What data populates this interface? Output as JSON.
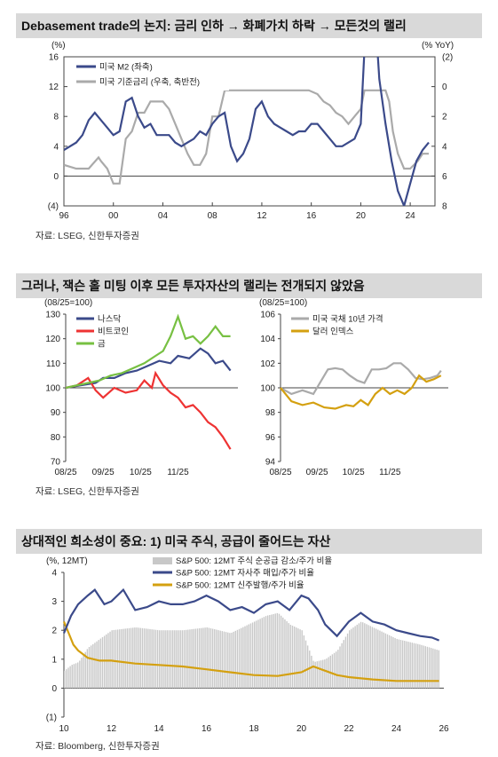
{
  "titles": {
    "c1": "Debasement trade의 논지: 금리 인하 → 화폐가치 하락 → 모든것의 랠리",
    "c2": "그러나, 잭슨 홀 미팅 이후 모든 투자자산의 랠리는 전개되지 않았음",
    "c3": "상대적인 희소성이 중요: 1) 미국 주식, 공급이 줄어드는 자산"
  },
  "sources": {
    "c1": "자료: LSEG, 신한투자증권",
    "c2": "자료: LSEG, 신한투자증권",
    "c3": "자료: Bloomberg, 신한투자증권"
  },
  "chart_data": [
    {
      "type": "line",
      "id": "m2-vs-rate",
      "left_unit": "(%)",
      "right_unit": "(% YoY)",
      "left_ylim": [
        -4,
        16
      ],
      "left_ticks": [
        16,
        12,
        8,
        4,
        0,
        -4
      ],
      "left_tick_labels": [
        "16",
        "12",
        "8",
        "4",
        "0",
        "(4)"
      ],
      "right_ylim": [
        -2,
        8
      ],
      "right_inverted": true,
      "right_ticks": [
        -2,
        0,
        2,
        4,
        6,
        8
      ],
      "right_tick_labels": [
        "(2)",
        "0",
        "2",
        "4",
        "6",
        "8"
      ],
      "xlim": [
        1996,
        2026
      ],
      "x_ticks": [
        1996,
        2000,
        2004,
        2008,
        2012,
        2016,
        2020,
        2024
      ],
      "x_tick_labels": [
        "96",
        "00",
        "04",
        "08",
        "12",
        "16",
        "20",
        "24"
      ],
      "series": [
        {
          "name": "미국 M2 (좌축)",
          "color": "#3b4a8a",
          "axis": "left",
          "x": [
            1996,
            1997,
            1997.5,
            1998,
            1998.5,
            1999,
            1999.5,
            2000,
            2000.5,
            2001,
            2001.5,
            2002,
            2002.5,
            2003,
            2003.5,
            2004,
            2004.5,
            2005,
            2005.5,
            2006,
            2006.5,
            2007,
            2007.5,
            2008,
            2008.5,
            2009,
            2009.5,
            2010,
            2010.5,
            2011,
            2011.5,
            2012,
            2012.5,
            2013,
            2013.5,
            2014,
            2014.5,
            2015,
            2015.5,
            2016,
            2016.5,
            2017,
            2017.5,
            2018,
            2018.5,
            2019,
            2019.5,
            2020,
            2020.3,
            2020.6,
            2021,
            2021.5,
            2022,
            2022.5,
            2023,
            2023.5,
            2024,
            2024.5,
            2025,
            2025.5
          ],
          "y": [
            3.5,
            4.5,
            5.5,
            7.5,
            8.5,
            7.5,
            6.5,
            5.5,
            6,
            10,
            10.5,
            8,
            6.5,
            7,
            5.5,
            5.5,
            5.5,
            4.5,
            4,
            4.5,
            5,
            6,
            5.5,
            7,
            8,
            8.5,
            4,
            2,
            3,
            5,
            9,
            10,
            8,
            7,
            6.5,
            6,
            5.5,
            6,
            6,
            7,
            7,
            6,
            5,
            4,
            4,
            4.5,
            5,
            7,
            17,
            24,
            26,
            13,
            7,
            2,
            -2,
            -4,
            -1,
            2,
            3.5,
            4.5
          ]
        },
        {
          "name": "미국 기준금리 (우축, 축반전)",
          "color": "#aaaaaa",
          "axis": "right",
          "x": [
            1996,
            1997,
            1998,
            1998.8,
            1999,
            1999.5,
            2000,
            2000.5,
            2001,
            2001.5,
            2002,
            2002.5,
            2003,
            2004,
            2004.5,
            2005,
            2005.5,
            2006,
            2006.5,
            2007,
            2007.5,
            2008,
            2008.5,
            2009,
            2010,
            2012,
            2014,
            2015.8,
            2016.5,
            2017,
            2017.5,
            2018,
            2018.5,
            2019,
            2019.5,
            2020,
            2020.3,
            2021,
            2022,
            2022.3,
            2022.6,
            2023,
            2023.5,
            2024,
            2024.6,
            2025,
            2025.5
          ],
          "y": [
            5.25,
            5.5,
            5.5,
            4.75,
            5,
            5.5,
            6.5,
            6.5,
            3.5,
            3,
            1.75,
            1.75,
            1,
            1,
            1.5,
            2.5,
            3.5,
            4.5,
            5.25,
            5.25,
            4.5,
            2,
            2,
            0.25,
            0.25,
            0.25,
            0.25,
            0.25,
            0.5,
            1,
            1.25,
            1.75,
            2,
            2.5,
            2,
            1.5,
            0.25,
            0.25,
            0.25,
            1,
            3,
            4.5,
            5.5,
            5.5,
            5,
            4.5,
            4.5
          ]
        }
      ]
    },
    {
      "type": "line",
      "id": "risk-assets",
      "unit": "(08/25=100)",
      "ylim": [
        70,
        130
      ],
      "y_ticks": [
        70,
        80,
        90,
        100,
        110,
        120,
        130
      ],
      "xlim": [
        0,
        4.6
      ],
      "x_ticks": [
        0,
        1,
        2,
        3
      ],
      "x_tick_labels": [
        "08/25",
        "09/25",
        "10/25",
        "11/25"
      ],
      "series": [
        {
          "name": "나스닥",
          "color": "#3b4a8a",
          "x": [
            0,
            0.4,
            0.8,
            1.0,
            1.3,
            1.6,
            1.9,
            2.2,
            2.5,
            2.8,
            3.0,
            3.3,
            3.6,
            3.8,
            4.0,
            4.2,
            4.4
          ],
          "y": [
            100,
            101,
            102,
            104,
            104,
            106,
            107,
            109,
            111,
            110,
            113,
            112,
            116,
            114,
            110,
            111,
            107
          ]
        },
        {
          "name": "비트코인",
          "color": "#ee3333",
          "x": [
            0,
            0.3,
            0.6,
            0.8,
            1.0,
            1.3,
            1.6,
            1.9,
            2.1,
            2.3,
            2.4,
            2.6,
            2.8,
            3.0,
            3.2,
            3.4,
            3.6,
            3.8,
            4.0,
            4.2,
            4.4
          ],
          "y": [
            100,
            101,
            104,
            99,
            96,
            100,
            98,
            99,
            103,
            100,
            106,
            101,
            98,
            96,
            92,
            93,
            90,
            86,
            84,
            80,
            75
          ]
        },
        {
          "name": "금",
          "color": "#77c042",
          "x": [
            0,
            0.3,
            0.6,
            0.9,
            1.2,
            1.5,
            1.8,
            2.1,
            2.4,
            2.6,
            2.8,
            3.0,
            3.2,
            3.4,
            3.6,
            3.8,
            4.0,
            4.2,
            4.4
          ],
          "y": [
            100,
            101,
            102,
            103,
            105,
            106,
            108,
            110,
            113,
            115,
            121,
            129,
            120,
            121,
            118,
            121,
            125,
            121,
            121
          ]
        }
      ]
    },
    {
      "type": "line",
      "id": "treasury-dollar",
      "unit": "(08/25=100)",
      "ylim": [
        94,
        106
      ],
      "y_ticks": [
        94,
        96,
        98,
        100,
        102,
        104,
        106
      ],
      "xlim": [
        0,
        4.6
      ],
      "x_ticks": [
        0,
        1,
        2,
        3
      ],
      "x_tick_labels": [
        "08/25",
        "09/25",
        "10/25",
        "11/25"
      ],
      "series": [
        {
          "name": "미국 국채 10년 가격",
          "color": "#aaaaaa",
          "x": [
            0,
            0.3,
            0.6,
            0.9,
            1.1,
            1.3,
            1.5,
            1.7,
            1.9,
            2.1,
            2.3,
            2.5,
            2.7,
            2.9,
            3.1,
            3.3,
            3.5,
            3.7,
            3.9,
            4.1,
            4.3,
            4.4
          ],
          "y": [
            100,
            99.5,
            99.8,
            99.5,
            100.5,
            101.5,
            101.6,
            101.5,
            101.0,
            100.6,
            100.4,
            101.5,
            101.5,
            101.6,
            102.0,
            102.0,
            101.5,
            100.8,
            100.7,
            100.8,
            101.0,
            101.4
          ]
        },
        {
          "name": "달러 인덱스",
          "color": "#d4a010",
          "x": [
            0,
            0.3,
            0.6,
            0.9,
            1.2,
            1.5,
            1.8,
            2.0,
            2.2,
            2.4,
            2.6,
            2.8,
            3.0,
            3.2,
            3.4,
            3.6,
            3.8,
            4.0,
            4.2,
            4.4
          ],
          "y": [
            100,
            98.9,
            98.6,
            98.8,
            98.4,
            98.3,
            98.6,
            98.5,
            99.0,
            98.6,
            99.5,
            100.0,
            99.5,
            99.8,
            99.5,
            100.0,
            101.0,
            100.5,
            100.7,
            101.0
          ]
        }
      ]
    },
    {
      "type": "area",
      "id": "us-equity-supply",
      "unit": "(%, 12MT)",
      "ylim": [
        -1,
        4
      ],
      "y_ticks": [
        4,
        3,
        2,
        1,
        0,
        -1
      ],
      "y_tick_labels": [
        "4",
        "3",
        "2",
        "1",
        "0",
        "(1)"
      ],
      "xlim": [
        2010,
        2026
      ],
      "x_ticks": [
        2010,
        2012,
        2014,
        2016,
        2018,
        2020,
        2022,
        2024,
        2026
      ],
      "x_tick_labels": [
        "10",
        "12",
        "14",
        "16",
        "18",
        "20",
        "22",
        "24",
        "26"
      ],
      "series": [
        {
          "name": "S&P 500: 12MT 주식 순공급 감소/주가 비율",
          "color": "#c8c8c8",
          "x": [
            2010,
            2010.3,
            2010.6,
            2011,
            2011.5,
            2012,
            2013,
            2014,
            2015,
            2016,
            2017,
            2018,
            2018.5,
            2019,
            2019.5,
            2020,
            2020.5,
            2021,
            2021.5,
            2022,
            2022.5,
            2023,
            2023.5,
            2024,
            2024.5,
            2025,
            2025.8
          ],
          "y": [
            0.6,
            0.8,
            0.9,
            1.4,
            1.7,
            2.0,
            2.1,
            2.0,
            2.0,
            2.1,
            1.9,
            2.3,
            2.5,
            2.6,
            2.2,
            2.0,
            0.9,
            1.0,
            1.3,
            2.0,
            2.3,
            2.1,
            1.9,
            1.7,
            1.6,
            1.5,
            1.3
          ]
        },
        {
          "name": "S&P 500: 12MT 자사주 매입/주가 비율",
          "color": "#3b4a8a",
          "x": [
            2010,
            2010.3,
            2010.6,
            2011,
            2011.3,
            2011.7,
            2012,
            2012.5,
            2013,
            2013.5,
            2014,
            2014.5,
            2015,
            2015.5,
            2016,
            2016.5,
            2017,
            2017.5,
            2018,
            2018.5,
            2019,
            2019.5,
            2020,
            2020.3,
            2020.7,
            2021,
            2021.5,
            2022,
            2022.5,
            2023,
            2023.5,
            2024,
            2024.5,
            2025,
            2025.5,
            2025.8
          ],
          "y": [
            1.9,
            2.5,
            2.9,
            3.2,
            3.4,
            2.9,
            3.0,
            3.4,
            2.7,
            2.8,
            3.0,
            2.9,
            2.9,
            3.0,
            3.2,
            3.0,
            2.7,
            2.8,
            2.6,
            2.9,
            3.0,
            2.7,
            3.2,
            3.1,
            2.7,
            2.2,
            1.8,
            2.3,
            2.6,
            2.3,
            2.2,
            2.0,
            1.9,
            1.8,
            1.75,
            1.65
          ]
        },
        {
          "name": "S&P 500: 12MT 신주발행/주가 비율",
          "color": "#d4a010",
          "x": [
            2010,
            2010.2,
            2010.4,
            2010.6,
            2011,
            2011.5,
            2012,
            2013,
            2014,
            2015,
            2016,
            2017,
            2018,
            2019,
            2020,
            2020.5,
            2021,
            2021.5,
            2022,
            2023,
            2024,
            2025,
            2025.8
          ],
          "y": [
            2.3,
            1.9,
            1.5,
            1.3,
            1.05,
            0.95,
            0.95,
            0.85,
            0.8,
            0.75,
            0.65,
            0.55,
            0.45,
            0.42,
            0.55,
            0.75,
            0.6,
            0.45,
            0.38,
            0.3,
            0.25,
            0.25,
            0.25
          ]
        }
      ]
    }
  ]
}
